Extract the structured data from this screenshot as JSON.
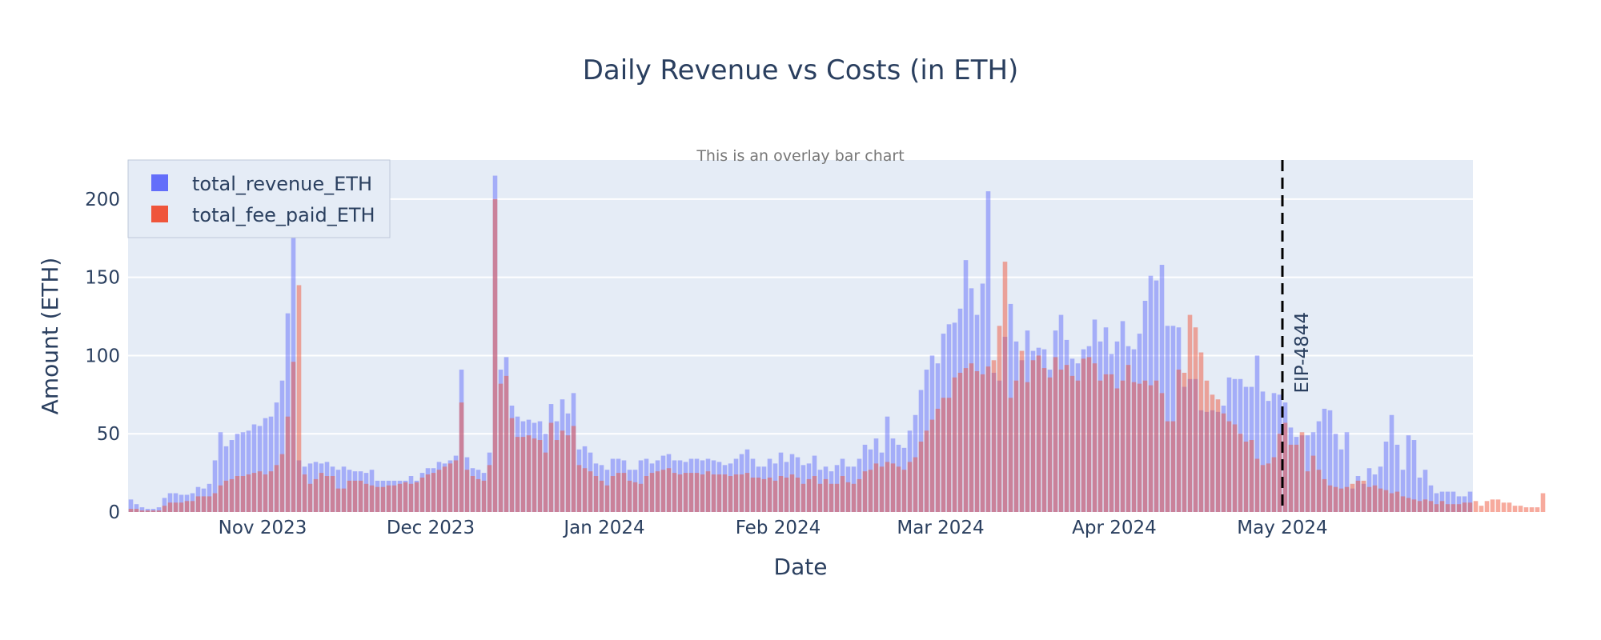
{
  "chart_data": {
    "type": "bar",
    "barmode": "overlay",
    "title": "Daily Revenue vs Costs (in ETH)",
    "subtitle": "This is an overlay bar chart",
    "xlabel": "Date",
    "ylabel": "Amount (ETH)",
    "x_start": "2023-10-08",
    "ylim": [
      0,
      225
    ],
    "y_ticks": [
      0,
      50,
      100,
      150,
      200
    ],
    "x_ticks": [
      {
        "date": "2023-11-01",
        "label": "Nov 2023"
      },
      {
        "date": "2023-12-01",
        "label": "Dec 2023"
      },
      {
        "date": "2024-01-01",
        "label": "Jan 2024"
      },
      {
        "date": "2024-02-01",
        "label": "Feb 2024"
      },
      {
        "date": "2024-03-01",
        "label": "Mar 2024"
      },
      {
        "date": "2024-04-01",
        "label": "Apr 2024"
      },
      {
        "date": "2024-05-01",
        "label": "May 2024"
      }
    ],
    "grid": true,
    "legend_position": "top-left",
    "series": [
      {
        "name": "total_revenue_ETH",
        "color": "#636efa",
        "opacity": 0.5,
        "values": [
          8,
          5,
          3,
          2,
          2,
          3,
          9,
          12,
          12,
          11,
          11,
          12,
          16,
          15,
          18,
          33,
          51,
          42,
          46,
          50,
          51,
          52,
          56,
          55,
          60,
          61,
          70,
          84,
          127,
          185,
          33,
          29,
          31,
          32,
          31,
          32,
          29,
          27,
          29,
          27,
          26,
          26,
          25,
          27,
          20,
          20,
          20,
          20,
          20,
          20,
          23,
          20,
          25,
          28,
          28,
          32,
          31,
          33,
          36,
          91,
          35,
          28,
          27,
          25,
          38,
          215,
          91,
          99,
          68,
          61,
          58,
          59,
          57,
          58,
          50,
          69,
          58,
          72,
          63,
          76,
          40,
          42,
          38,
          31,
          30,
          27,
          34,
          34,
          33,
          27,
          27,
          33,
          34,
          31,
          33,
          36,
          37,
          33,
          33,
          32,
          34,
          34,
          33,
          34,
          33,
          32,
          30,
          31,
          34,
          37,
          40,
          34,
          29,
          29,
          34,
          31,
          38,
          32,
          37,
          35,
          30,
          31,
          36,
          27,
          29,
          26,
          30,
          34,
          29,
          29,
          34,
          43,
          40,
          47,
          38,
          61,
          47,
          43,
          41,
          52,
          62,
          78,
          91,
          100,
          95,
          114,
          120,
          121,
          130,
          161,
          143,
          126,
          146,
          205,
          89,
          84,
          112,
          133,
          109,
          97,
          116,
          103,
          105,
          104,
          91,
          116,
          126,
          110,
          98,
          95,
          104,
          106,
          123,
          109,
          118,
          101,
          109,
          122,
          106,
          104,
          114,
          135,
          151,
          148,
          158,
          119,
          119,
          118,
          80,
          85,
          85,
          65,
          64,
          65,
          64,
          68,
          86,
          85,
          85,
          80,
          80,
          100,
          77,
          71,
          76,
          75,
          70,
          54,
          48,
          49,
          49,
          51,
          58,
          66,
          65,
          50,
          40,
          51,
          15,
          23,
          18,
          28,
          24,
          29,
          45,
          62,
          43,
          27,
          49,
          46,
          22,
          27,
          17,
          12,
          13,
          13,
          13,
          10,
          10,
          13
        ]
      },
      {
        "name": "total_fee_paid_ETH",
        "color": "#ef553b",
        "opacity": 0.5,
        "values": [
          2,
          2,
          1,
          1,
          1,
          1,
          4,
          6,
          6,
          6,
          7,
          7,
          10,
          10,
          10,
          12,
          17,
          20,
          21,
          23,
          23,
          24,
          25,
          26,
          24,
          26,
          30,
          37,
          61,
          96,
          145,
          24,
          18,
          21,
          25,
          23,
          23,
          15,
          15,
          20,
          20,
          20,
          18,
          17,
          16,
          16,
          17,
          17,
          18,
          19,
          18,
          19,
          22,
          24,
          25,
          27,
          29,
          31,
          33,
          70,
          27,
          23,
          21,
          20,
          30,
          200,
          82,
          87,
          60,
          48,
          48,
          49,
          47,
          46,
          38,
          57,
          46,
          52,
          49,
          55,
          30,
          28,
          26,
          23,
          20,
          17,
          23,
          25,
          25,
          20,
          19,
          18,
          23,
          25,
          26,
          27,
          28,
          25,
          24,
          25,
          25,
          25,
          24,
          26,
          24,
          24,
          24,
          23,
          24,
          24,
          25,
          22,
          22,
          21,
          22,
          20,
          23,
          22,
          24,
          22,
          18,
          21,
          23,
          18,
          21,
          18,
          18,
          23,
          19,
          18,
          21,
          26,
          27,
          31,
          29,
          32,
          31,
          29,
          27,
          32,
          35,
          45,
          52,
          59,
          66,
          73,
          73,
          86,
          89,
          92,
          95,
          90,
          88,
          93,
          97,
          119,
          160,
          73,
          84,
          103,
          83,
          97,
          100,
          92,
          86,
          99,
          91,
          94,
          87,
          84,
          98,
          99,
          95,
          84,
          88,
          88,
          79,
          84,
          94,
          83,
          82,
          84,
          81,
          84,
          76,
          58,
          58,
          91,
          89,
          126,
          118,
          102,
          84,
          75,
          72,
          63,
          58,
          56,
          50,
          45,
          46,
          34,
          30,
          31,
          35,
          50,
          57,
          43,
          43,
          51,
          26,
          36,
          27,
          21,
          17,
          16,
          15,
          16,
          18,
          20,
          20,
          16,
          17,
          15,
          14,
          12,
          13,
          10,
          9,
          8,
          7,
          8,
          7,
          5,
          7,
          5,
          5,
          5,
          6,
          6,
          7,
          4,
          7,
          8,
          8,
          6,
          6,
          4,
          4,
          3,
          3,
          3,
          12
        ]
      }
    ],
    "annotations": [
      {
        "type": "vline",
        "date": "2024-05-01",
        "label": "EIP-4844",
        "style": "dash",
        "color": "#000000"
      }
    ]
  }
}
